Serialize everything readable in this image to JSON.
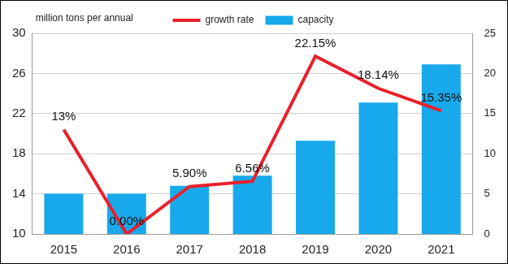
{
  "chart_data": {
    "type": "bar",
    "ylabel": "million tons per annual",
    "categories": [
      "2015",
      "2016",
      "2017",
      "2018",
      "2019",
      "2020",
      "2021"
    ],
    "series": [
      {
        "name": "capacity",
        "type": "bar",
        "color": "#18a9ec",
        "values": [
          14.0,
          14.0,
          14.8,
          15.8,
          19.3,
          23.1,
          26.9
        ]
      },
      {
        "name": "growth rate",
        "type": "line",
        "color": "#e8202a",
        "axis": "y2",
        "marker": "none",
        "data_labels": true,
        "values": [
          13,
          0,
          5.9,
          6.56,
          22.15,
          18.14,
          15.35
        ],
        "value_labels": [
          "13%",
          "0.00%",
          "5.90%",
          "6.56%",
          "22.15%",
          "18.14%",
          "15.35%"
        ]
      }
    ],
    "ylim": [
      10,
      30
    ],
    "yticks": [
      10,
      14,
      18,
      22,
      26,
      30
    ],
    "y2lim": [
      0,
      25
    ],
    "y2ticks": [
      0,
      5,
      10,
      15,
      20,
      25
    ],
    "grid": true,
    "legend": "top"
  }
}
